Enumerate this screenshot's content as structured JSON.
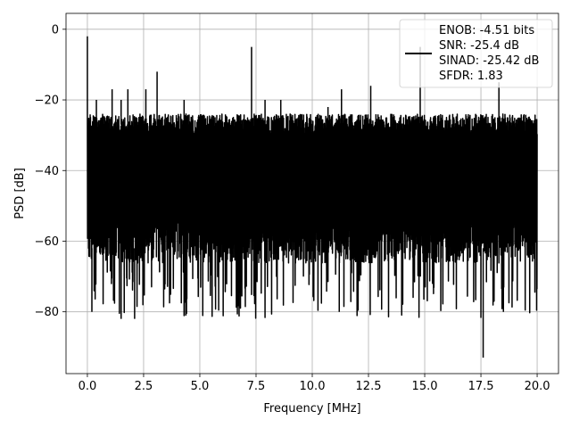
{
  "chart_data": {
    "type": "line",
    "xlabel": "Frequency [MHz]",
    "ylabel": "PSD [dB]",
    "xlim": [
      -0.95,
      20.95
    ],
    "ylim": [
      -97.5,
      4.5
    ],
    "x_ticks": [
      0.0,
      2.5,
      5.0,
      7.5,
      10.0,
      12.5,
      15.0,
      17.5,
      20.0
    ],
    "x_tick_labels": [
      "0.0",
      "2.5",
      "5.0",
      "7.5",
      "10.0",
      "12.5",
      "15.0",
      "17.5",
      "20.0"
    ],
    "y_ticks": [
      0,
      -20,
      -40,
      -60,
      -80
    ],
    "y_tick_labels": [
      "0",
      "−20",
      "−40",
      "−60",
      "−80"
    ],
    "grid": true,
    "legend_placement": "top-right",
    "legend_lines": [
      "ENOB: -4.51 bits",
      "SNR: -25.4 dB",
      "SINAD: -25.42 dB",
      "SFDR: 1.83"
    ],
    "series_color": "#000000",
    "noise_band": {
      "x_range": [
        0.0,
        20.0
      ],
      "upper_level": -27,
      "lower_level": -62,
      "deep_min": -82
    },
    "spikes": [
      {
        "x": 0.0,
        "y": -2
      },
      {
        "x": 0.4,
        "y": -20
      },
      {
        "x": 1.1,
        "y": -17
      },
      {
        "x": 1.5,
        "y": -20
      },
      {
        "x": 1.8,
        "y": -17
      },
      {
        "x": 2.6,
        "y": -17
      },
      {
        "x": 3.1,
        "y": -12
      },
      {
        "x": 4.3,
        "y": -20
      },
      {
        "x": 7.3,
        "y": -5
      },
      {
        "x": 7.9,
        "y": -20
      },
      {
        "x": 8.6,
        "y": -20
      },
      {
        "x": 10.7,
        "y": -22
      },
      {
        "x": 11.3,
        "y": -17
      },
      {
        "x": 12.6,
        "y": -16
      },
      {
        "x": 14.8,
        "y": -5
      },
      {
        "x": 18.3,
        "y": -15
      }
    ],
    "dips": [
      {
        "x": 0.2,
        "y": -80
      },
      {
        "x": 1.5,
        "y": -82
      },
      {
        "x": 2.1,
        "y": -82
      },
      {
        "x": 11.2,
        "y": -80
      },
      {
        "x": 17.6,
        "y": -93
      },
      {
        "x": 18.5,
        "y": -80
      }
    ]
  }
}
